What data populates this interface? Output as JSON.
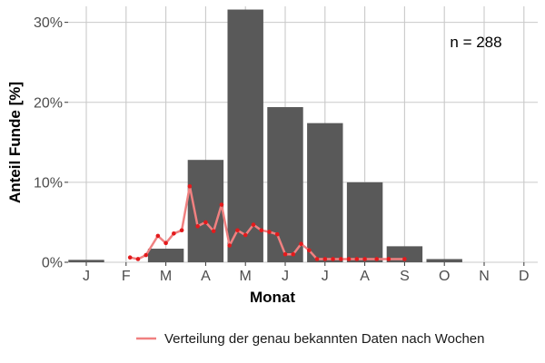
{
  "chart_data": {
    "type": "bar",
    "xlabel": "Monat",
    "ylabel": "Anteil Funde [%]",
    "categories": [
      "J",
      "F",
      "M",
      "A",
      "M",
      "J",
      "J",
      "A",
      "S",
      "O",
      "N",
      "D"
    ],
    "bars": {
      "values": [
        0.3,
        0.0,
        1.7,
        12.8,
        31.6,
        19.4,
        17.4,
        10.0,
        2.0,
        0.4,
        0.0,
        0.0
      ],
      "color": "#595959"
    },
    "ylim": [
      0,
      32
    ],
    "yticks": [
      0,
      10,
      20,
      30
    ],
    "ytick_labels": [
      "0%",
      "10%",
      "20%",
      "30%"
    ],
    "grid": true,
    "annotation": "n = 288",
    "series": [
      {
        "name": "Verteilung der genau bekannten Daten nach Wochen",
        "color": "#f08080",
        "point_color": "#e31a1c",
        "x": [
          2.1,
          2.3,
          2.5,
          2.8,
          3.0,
          3.2,
          3.4,
          3.6,
          3.8,
          4.0,
          4.2,
          4.4,
          4.6,
          4.8,
          5.0,
          5.2,
          5.4,
          5.6,
          5.8,
          6.0,
          6.2,
          6.4,
          6.6,
          6.8,
          7.0,
          7.2,
          7.4,
          7.6,
          7.8,
          8.0,
          8.3,
          8.6,
          9.0
        ],
        "y": [
          0.6,
          0.4,
          0.9,
          3.3,
          2.4,
          3.6,
          4.0,
          9.5,
          4.5,
          5.0,
          3.9,
          7.2,
          2.1,
          4.0,
          3.4,
          4.7,
          4.0,
          3.8,
          3.5,
          1.0,
          1.0,
          2.3,
          1.5,
          0.4,
          0.4,
          0.4,
          0.4,
          0.4,
          0.4,
          0.4,
          0.4,
          0.4,
          0.4
        ]
      }
    ],
    "legend_position": "bottom"
  }
}
